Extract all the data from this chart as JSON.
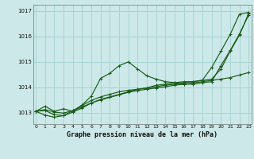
{
  "title": "Graphe pression niveau de la mer (hPa)",
  "bg_color": "#cce8e8",
  "grid_color": "#aad4d4",
  "line_color": "#1a5c1a",
  "xlim": [
    -0.3,
    23.3
  ],
  "ylim": [
    1012.55,
    1017.25
  ],
  "yticks": [
    1013,
    1014,
    1015,
    1016,
    1017
  ],
  "xticks": [
    0,
    1,
    2,
    3,
    4,
    5,
    6,
    7,
    8,
    9,
    10,
    11,
    12,
    13,
    14,
    15,
    16,
    17,
    18,
    19,
    20,
    21,
    22,
    23
  ],
  "series": [
    [
      1013.05,
      1013.25,
      1013.05,
      1013.15,
      1013.05,
      1013.3,
      1013.65,
      1014.35,
      1014.55,
      1014.85,
      1015.0,
      1014.72,
      1014.45,
      1014.32,
      1014.22,
      1014.18,
      1014.12,
      1014.12,
      1014.18,
      1014.22,
      1014.85,
      1015.45,
      1016.1,
      1016.85
    ],
    [
      1013.05,
      1012.9,
      1012.82,
      1012.88,
      1013.02,
      1013.18,
      1013.38,
      1013.5,
      1013.6,
      1013.7,
      1013.8,
      1013.87,
      1013.92,
      1013.97,
      1014.02,
      1014.08,
      1014.12,
      1014.17,
      1014.22,
      1014.27,
      1014.32,
      1014.38,
      1014.48,
      1014.58
    ],
    [
      1013.05,
      1013.08,
      1012.92,
      1012.88,
      1013.08,
      1013.22,
      1013.38,
      1013.52,
      1013.62,
      1013.72,
      1013.82,
      1013.92,
      1013.97,
      1014.02,
      1014.08,
      1014.12,
      1014.18,
      1014.22,
      1014.27,
      1014.32,
      1014.72,
      1015.42,
      1016.05,
      1016.92
    ],
    [
      1013.05,
      1013.12,
      1013.02,
      1012.98,
      1013.08,
      1013.28,
      1013.48,
      1013.62,
      1013.72,
      1013.82,
      1013.88,
      1013.92,
      1013.97,
      1014.08,
      1014.12,
      1014.18,
      1014.22,
      1014.22,
      1014.28,
      1014.78,
      1015.42,
      1016.08,
      1016.88,
      1016.95
    ]
  ]
}
